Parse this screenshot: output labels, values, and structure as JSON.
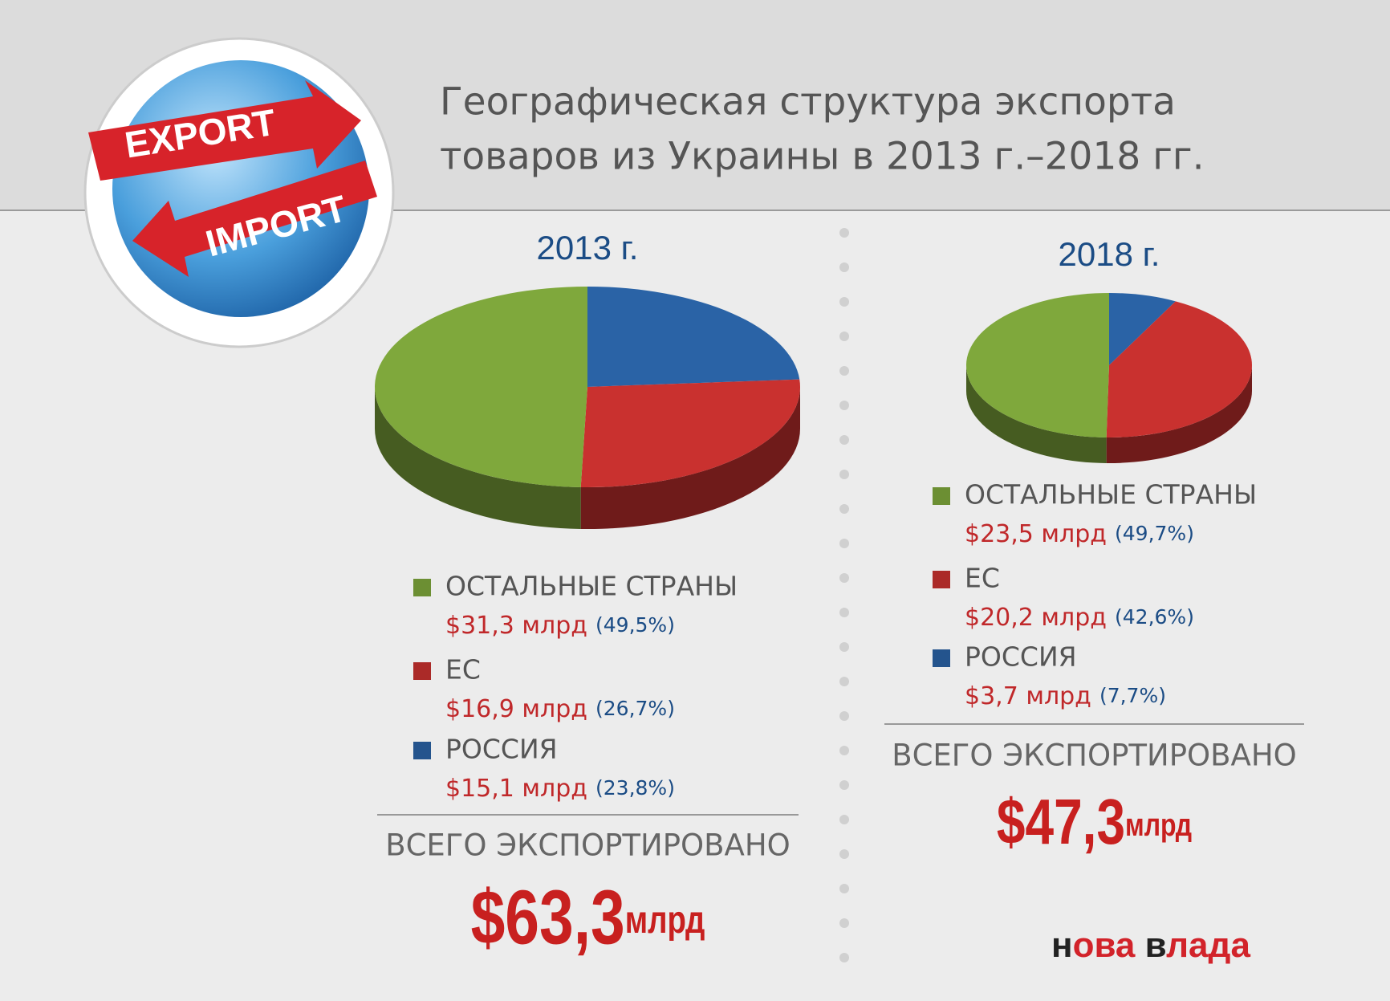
{
  "header": {
    "title": [
      "Географическая структура экспорта",
      "товаров из Украины в 2013 г.–2018 гг."
    ]
  },
  "logo": {
    "export": "EXPORT",
    "import": "IMPORT"
  },
  "chart_data": [
    {
      "type": "pie",
      "title": "2013 г.",
      "categories": [
        "ОСТАЛЬНЫЕ СТРАНЫ",
        "ЕС",
        "РОССИЯ"
      ],
      "values": [
        49.5,
        26.7,
        23.8
      ],
      "value_labels": [
        "(49,5%)",
        "(26,7%)",
        "(23,8%)"
      ],
      "amount_labels": [
        "$31,3 млрд",
        "$16,9 млрд",
        "$15,1 млрд"
      ],
      "colors": [
        "#7fa83c",
        "#c9312f",
        "#2a63a6"
      ],
      "total_caption": "ВСЕГО ЭКСПОРТИРОВАНО",
      "total_label": "$63,3",
      "total_unit": "млрд"
    },
    {
      "type": "pie",
      "title": "2018 г.",
      "categories": [
        "ОСТАЛЬНЫЕ СТРАНЫ",
        "ЕС",
        "РОССИЯ"
      ],
      "values": [
        49.7,
        42.6,
        7.7
      ],
      "value_labels": [
        "(49,7%)",
        "(42,6%)",
        "(7,7%)"
      ],
      "amount_labels": [
        "$23,5 млрд",
        "$20,2 млрд",
        "$3,7 млрд"
      ],
      "colors": [
        "#7fa83c",
        "#c9312f",
        "#2a63a6"
      ],
      "total_caption": "ВСЕГО ЭКСПОРТИРОВАНО",
      "total_label": "$47,3",
      "total_unit": "млрд"
    }
  ],
  "brand": [
    "н",
    "ова ",
    "в",
    "лада"
  ]
}
